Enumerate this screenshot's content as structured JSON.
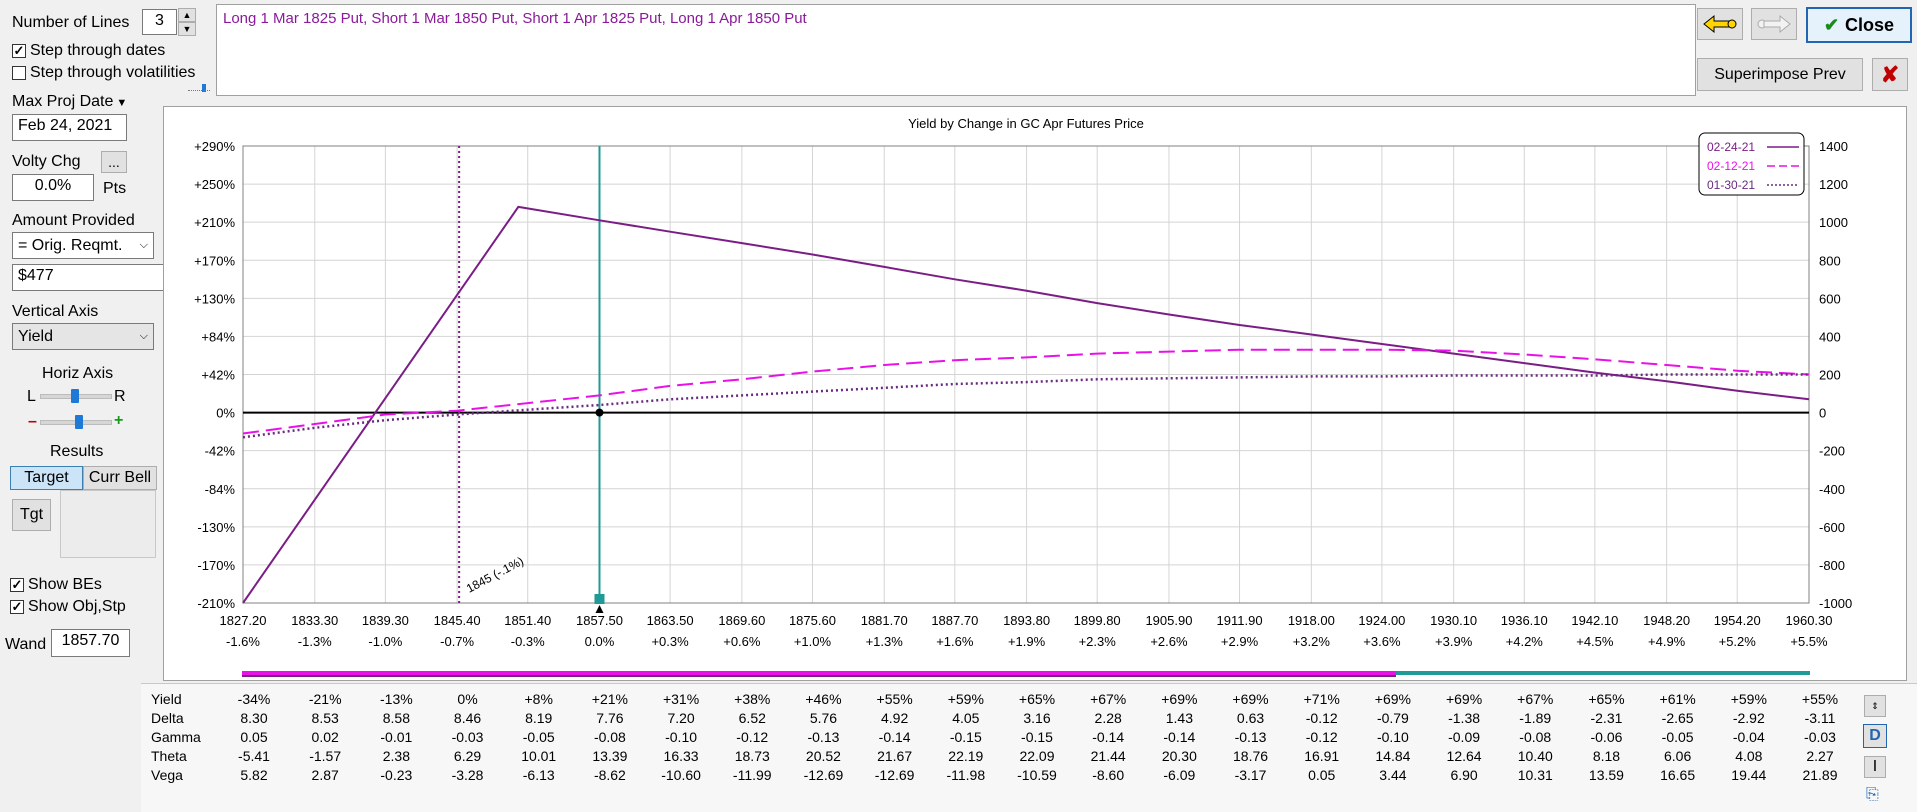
{
  "controls": {
    "number_of_lines_label": "Number of Lines",
    "number_of_lines_value": "3",
    "step_dates_label": "Step through dates",
    "step_dates_checked": true,
    "step_vols_label": "Step through volatilities",
    "step_vols_checked": false,
    "max_proj_date_label": "Max Proj Date",
    "max_proj_date_value": "Feb 24, 2021",
    "volty_chg_label": "Volty Chg",
    "volty_chg_btn": "...",
    "volty_chg_value": "0.0%",
    "volty_chg_unit": "Pts",
    "amount_provided_label": "Amount Provided",
    "amount_provided_select": "= Orig. Reqmt.",
    "amount_value": "$477",
    "vertical_axis_label": "Vertical Axis",
    "vertical_axis_value": "Yield",
    "horiz_axis_label": "Horiz Axis",
    "horiz_l": "L",
    "horiz_r": "R",
    "zoom_minus": "–",
    "zoom_plus": "+",
    "results_label": "Results",
    "target_btn": "Target",
    "curr_bell_btn": "Curr Bell",
    "tgt_btn": "Tgt",
    "show_bes_label": "Show BEs",
    "show_bes_checked": true,
    "show_obj_label": "Show Obj,Stp",
    "show_obj_checked": true,
    "wand_label": "Wand",
    "wand_value": "1857.70",
    "positions_text": "Long 1 Mar 1825 Put, Short 1 Mar 1850 Put, Short 1 Apr 1825 Put, Long 1 Apr 1850 Put",
    "close_btn": "Close",
    "superimpose_btn": "Superimpose Prev",
    "checkmark": "✔",
    "x_mark": "✘",
    "side_btn_d": "D",
    "side_btn_i": "I"
  },
  "colors": {
    "purple": "#7b1d86",
    "magenta": "#e812e8",
    "dark_purple": "#6a2a80",
    "teal": "#1f9a96",
    "text_purple": "#8b1a9b"
  },
  "chart_data": {
    "type": "line",
    "title": "Yield by Change in GC Apr Futures Price",
    "x": [
      1827.2,
      1833.3,
      1839.3,
      1845.4,
      1851.4,
      1857.5,
      1863.5,
      1869.6,
      1875.6,
      1881.7,
      1887.7,
      1893.8,
      1899.8,
      1905.9,
      1911.9,
      1918.0,
      1924.0,
      1930.1,
      1936.1,
      1942.1,
      1948.2,
      1954.2,
      1960.3
    ],
    "x_tick_labels": [
      "1827.20",
      "1833.30",
      "1839.30",
      "1845.40",
      "1851.40",
      "1857.50",
      "1863.50",
      "1869.60",
      "1875.60",
      "1881.70",
      "1887.70",
      "1893.80",
      "1899.80",
      "1905.90",
      "1911.90",
      "1918.00",
      "1924.00",
      "1930.10",
      "1936.10",
      "1942.10",
      "1948.20",
      "1954.20",
      "1960.30"
    ],
    "x_pct_labels": [
      "-1.6%",
      "-1.3%",
      "-1.0%",
      "-0.7%",
      "-0.3%",
      "0.0%",
      "+0.3%",
      "+0.6%",
      "+1.0%",
      "+1.3%",
      "+1.6%",
      "+1.9%",
      "+2.3%",
      "+2.6%",
      "+2.9%",
      "+3.2%",
      "+3.6%",
      "+3.9%",
      "+4.2%",
      "+4.5%",
      "+4.9%",
      "+5.2%",
      "+5.5%"
    ],
    "xlim": [
      1827.2,
      1960.3
    ],
    "y_left_ticks": [
      "+290%",
      "+250%",
      "+210%",
      "+170%",
      "+130%",
      "+84%",
      "+42%",
      "0%",
      "-42%",
      "-84%",
      "-130%",
      "-170%",
      "-210%"
    ],
    "y_right_ticks": [
      "1400",
      "1200",
      "1000",
      "800",
      "600",
      "400",
      "200",
      "0",
      "-200",
      "-400",
      "-600",
      "-800",
      "-1000"
    ],
    "ylim": [
      -1000,
      1400
    ],
    "grid": true,
    "legend_position": "top-right",
    "series": [
      {
        "name": "02-24-21",
        "style": "solid",
        "color": "#7b1d86",
        "x": [
          1827.2,
          1850.6,
          1857.5,
          1863.5,
          1869.6,
          1875.6,
          1881.7,
          1887.7,
          1893.8,
          1899.8,
          1905.9,
          1911.9,
          1918.0,
          1924.0,
          1930.1,
          1936.1,
          1942.1,
          1948.2,
          1954.2,
          1960.3
        ],
        "y": [
          -1000,
          1080,
          1010,
          950,
          890,
          830,
          765,
          700,
          640,
          575,
          515,
          460,
          410,
          360,
          310,
          260,
          210,
          165,
          115,
          70
        ]
      },
      {
        "name": "02-12-21",
        "style": "dashed",
        "color": "#e812e8",
        "x": [
          1827.2,
          1833.3,
          1839.3,
          1845.4,
          1851.4,
          1857.5,
          1863.5,
          1869.6,
          1875.6,
          1881.7,
          1887.7,
          1893.8,
          1899.8,
          1905.9,
          1911.9,
          1918.0,
          1924.0,
          1930.1,
          1936.1,
          1942.1,
          1948.2,
          1954.2,
          1960.3
        ],
        "y": [
          -110,
          -60,
          -10,
          10,
          50,
          90,
          140,
          175,
          215,
          250,
          275,
          290,
          310,
          320,
          330,
          330,
          330,
          325,
          305,
          280,
          250,
          220,
          200
        ]
      },
      {
        "name": "01-30-21",
        "style": "dotted",
        "color": "#6a2a80",
        "x": [
          1827.2,
          1833.3,
          1839.3,
          1845.4,
          1851.4,
          1857.5,
          1863.5,
          1869.6,
          1875.6,
          1881.7,
          1887.7,
          1893.8,
          1899.8,
          1905.9,
          1911.9,
          1918.0,
          1924.0,
          1930.1,
          1936.1,
          1942.1,
          1948.2,
          1954.2,
          1960.3
        ],
        "y": [
          -130,
          -80,
          -40,
          -10,
          15,
          40,
          70,
          90,
          110,
          130,
          150,
          160,
          175,
          180,
          185,
          190,
          190,
          195,
          195,
          195,
          200,
          200,
          200
        ]
      }
    ],
    "be_line": {
      "x": 1845.4,
      "label": "1845 (-.1%)"
    },
    "wand_line": {
      "x": 1857.5
    },
    "table": {
      "rows": [
        {
          "label": "Yield",
          "values": [
            "-34%",
            "-21%",
            "-13%",
            "0%",
            "+8%",
            "+21%",
            "+31%",
            "+38%",
            "+46%",
            "+55%",
            "+59%",
            "+65%",
            "+67%",
            "+69%",
            "+69%",
            "+71%",
            "+69%",
            "+69%",
            "+67%",
            "+65%",
            "+61%",
            "+59%",
            "+55%"
          ]
        },
        {
          "label": "Delta",
          "values": [
            "8.30",
            "8.53",
            "8.58",
            "8.46",
            "8.19",
            "7.76",
            "7.20",
            "6.52",
            "5.76",
            "4.92",
            "4.05",
            "3.16",
            "2.28",
            "1.43",
            "0.63",
            "-0.12",
            "-0.79",
            "-1.38",
            "-1.89",
            "-2.31",
            "-2.65",
            "-2.92",
            "-3.11"
          ]
        },
        {
          "label": "Gamma",
          "values": [
            "0.05",
            "0.02",
            "-0.01",
            "-0.03",
            "-0.05",
            "-0.08",
            "-0.10",
            "-0.12",
            "-0.13",
            "-0.14",
            "-0.15",
            "-0.15",
            "-0.14",
            "-0.14",
            "-0.13",
            "-0.12",
            "-0.10",
            "-0.09",
            "-0.08",
            "-0.06",
            "-0.05",
            "-0.04",
            "-0.03"
          ]
        },
        {
          "label": "Theta",
          "values": [
            "-5.41",
            "-1.57",
            "2.38",
            "6.29",
            "10.01",
            "13.39",
            "16.33",
            "18.73",
            "20.52",
            "21.67",
            "22.19",
            "22.09",
            "21.44",
            "20.30",
            "18.76",
            "16.91",
            "14.84",
            "12.64",
            "10.40",
            "8.18",
            "6.06",
            "4.08",
            "2.27"
          ]
        },
        {
          "label": "Vega",
          "values": [
            "5.82",
            "2.87",
            "-0.23",
            "-3.28",
            "-6.13",
            "-8.62",
            "-10.60",
            "-11.99",
            "-12.69",
            "-12.69",
            "-11.98",
            "-10.59",
            "-8.60",
            "-6.09",
            "-3.17",
            "0.05",
            "3.44",
            "6.90",
            "10.31",
            "13.59",
            "16.65",
            "19.44",
            "21.89"
          ]
        }
      ]
    }
  }
}
